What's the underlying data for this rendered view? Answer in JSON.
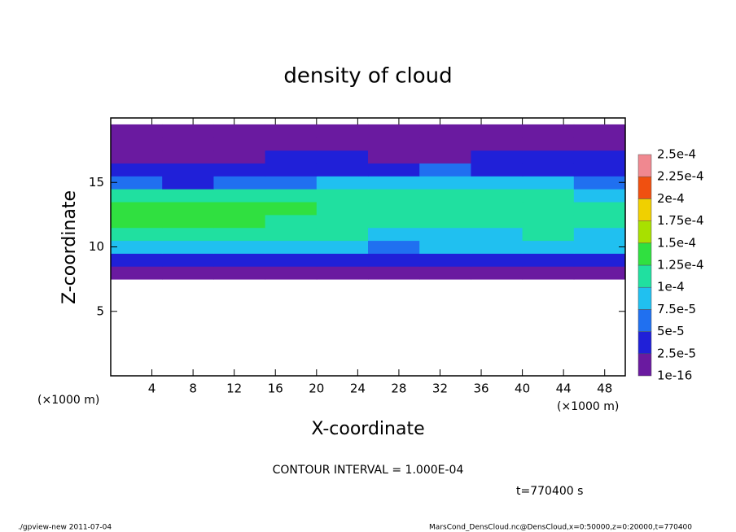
{
  "chart_data": {
    "type": "heatmap",
    "title": "density of cloud",
    "xlabel": "X-coordinate",
    "ylabel": "Z-coordinate",
    "xunit": "(×1000 m)",
    "yunit": "(×1000 m)",
    "annotation": "CONTOUR INTERVAL = 1.000E-04",
    "time_label": "t=770400 s",
    "footer_left": "./gpview-new  2011-07-04",
    "footer_right": "MarsCond_DensCloud.nc@DensCloud,x=0:50000,z=0:20000,t=770400",
    "xlim": [
      0,
      50
    ],
    "ylim": [
      0,
      20
    ],
    "xticks": [
      4,
      8,
      12,
      16,
      20,
      24,
      28,
      32,
      36,
      40,
      44,
      48
    ],
    "yticks": [
      5,
      10,
      15
    ],
    "x": [
      2.5,
      7.5,
      12.5,
      17.5,
      22.5,
      27.5,
      32.5,
      37.5,
      42.5,
      47.5
    ],
    "y": [
      8,
      9,
      10,
      11,
      12,
      13,
      14,
      15,
      16,
      17,
      18,
      19
    ],
    "values": [
      [
        1.2e-05,
        1.5e-05,
        1e-05,
        1.3e-05,
        1.5e-05,
        1.2e-05,
        1e-05,
        1.4e-05,
        1.2e-05,
        1.3e-05
      ],
      [
        4.5e-05,
        4.8e-05,
        4.2e-05,
        4.6e-05,
        5e-05,
        4.4e-05,
        4e-05,
        4.5e-05,
        4.7e-05,
        4.3e-05
      ],
      [
        8e-05,
        8.5e-05,
        8.2e-05,
        8.6e-05,
        8.3e-05,
        7e-05,
        7.8e-05,
        8.4e-05,
        8.1e-05,
        8e-05
      ],
      [
        0.000105,
        0.00011,
        0.000108,
        0.00011,
        0.000105,
        9e-05,
        9.5e-05,
        0.0001,
        0.000102,
        0.0001
      ],
      [
        0.00013,
        0.000128,
        0.00013,
        0.000125,
        0.00012,
        0.000105,
        0.00011,
        0.000115,
        0.000118,
        0.00011
      ],
      [
        0.000132,
        0.00013,
        0.000128,
        0.000127,
        0.000122,
        0.00011,
        0.000112,
        0.000115,
        0.000115,
        0.000105
      ],
      [
        0.00011,
        0.000105,
        0.000108,
        0.000105,
        0.000105,
        0.000105,
        0.000108,
        0.00011,
        0.000105,
        9e-05
      ],
      [
        5.5e-05,
        5e-05,
        6e-05,
        7e-05,
        8e-05,
        9e-05,
        9.5e-05,
        9.5e-05,
        8.5e-05,
        7.5e-05
      ],
      [
        3e-05,
        2.8e-05,
        3.5e-05,
        4e-05,
        4.5e-05,
        5e-05,
        5.5e-05,
        5e-05,
        4.5e-05,
        4e-05
      ],
      [
        2.5e-05,
        2e-05,
        2.2e-05,
        3e-05,
        3e-05,
        2e-05,
        2.2e-05,
        2.8e-05,
        3e-05,
        3.2e-05
      ],
      [
        2.2e-05,
        1.8e-05,
        1.6e-05,
        1.8e-05,
        1.5e-05,
        8e-06,
        6e-06,
        1.2e-05,
        2e-05,
        2.4e-05
      ],
      [
        1.8e-05,
        2e-05,
        1.5e-05,
        1.2e-05,
        1e-05,
        8e-06,
        5e-06,
        8e-06,
        1.5e-05,
        1.8e-05
      ]
    ],
    "levels": [
      {
        "value": 1e-16,
        "label": "1e-16"
      },
      {
        "value": 2.5e-05,
        "label": "2.5e-5"
      },
      {
        "value": 5e-05,
        "label": "5e-5"
      },
      {
        "value": 7.5e-05,
        "label": "7.5e-5"
      },
      {
        "value": 0.0001,
        "label": "1e-4"
      },
      {
        "value": 0.000125,
        "label": "1.25e-4"
      },
      {
        "value": 0.00015,
        "label": "1.5e-4"
      },
      {
        "value": 0.000175,
        "label": "1.75e-4"
      },
      {
        "value": 0.0002,
        "label": "2e-4"
      },
      {
        "value": 0.000225,
        "label": "2.25e-4"
      },
      {
        "value": 0.00025,
        "label": "2.5e-4"
      }
    ],
    "colors": [
      "#6a1aa0",
      "#2020d8",
      "#2070f0",
      "#20c0f0",
      "#20e0a0",
      "#30e040",
      "#a8e000",
      "#f0d000",
      "#f05010",
      "#f08890"
    ]
  }
}
